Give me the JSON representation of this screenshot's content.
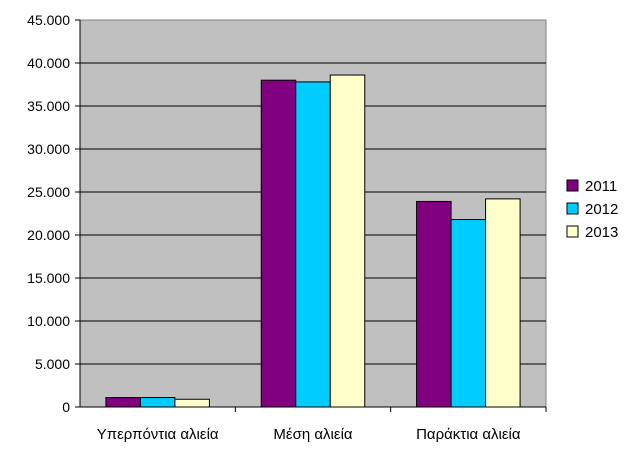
{
  "chart_data": {
    "type": "bar",
    "categories": [
      "Υπερπόντια αλιεία",
      "Μέση αλιεία",
      "Παράκτια αλιεία"
    ],
    "series": [
      {
        "name": "2011",
        "color": "#800080",
        "values": [
          1100,
          38000,
          23900
        ]
      },
      {
        "name": "2012",
        "color": "#00ccff",
        "values": [
          1100,
          37800,
          21800
        ]
      },
      {
        "name": "2013",
        "color": "#ffffcc",
        "values": [
          900,
          38600,
          24200
        ]
      }
    ],
    "ylim": [
      0,
      45000
    ],
    "ytick_labels": [
      "0",
      "5.000",
      "10.000",
      "15.000",
      "20.000",
      "25.000",
      "30.000",
      "35.000",
      "40.000",
      "45.000"
    ],
    "plot_background": "#c0c0c0",
    "grid": true,
    "legend_position": "right"
  }
}
